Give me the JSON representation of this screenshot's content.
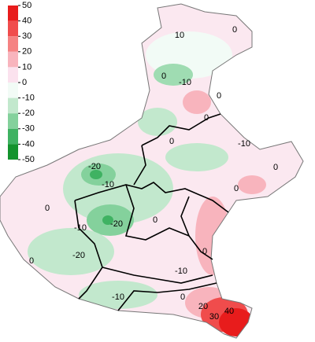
{
  "legend": {
    "ticks": [
      50,
      40,
      30,
      20,
      10,
      0,
      -10,
      -20,
      -30,
      -40,
      -50
    ],
    "colors": [
      "#e81c1c",
      "#f04c4c",
      "#f58282",
      "#f8b4bd",
      "#fbe2ee",
      "#f2fbf6",
      "#c2e8cd",
      "#84d19c",
      "#3fb262",
      "#13932d"
    ]
  },
  "contour_labels": [
    "10",
    "0",
    "0",
    "-10",
    "0",
    "0",
    "-10",
    "0",
    "0",
    "-20",
    "-10",
    "0",
    "0",
    "-10",
    "-20",
    "0",
    "-20",
    "0",
    "0",
    "-10",
    "-10",
    "0",
    "20",
    "30",
    "40"
  ]
}
